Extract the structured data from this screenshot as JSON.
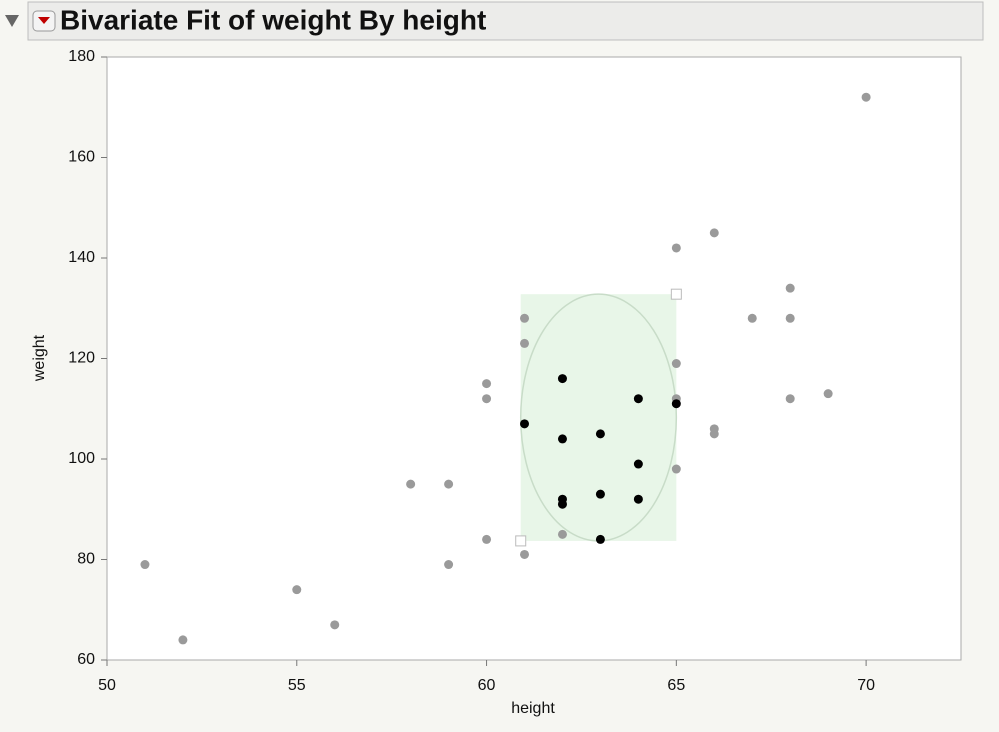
{
  "chart_data": {
    "type": "scatter",
    "title": "Bivariate Fit of weight By height",
    "x_label": "height",
    "y_label": "weight",
    "xlim": [
      50,
      72.5
    ],
    "ylim": [
      60,
      180
    ],
    "xticks": [
      50,
      55,
      60,
      65,
      70
    ],
    "yticks": [
      60,
      80,
      100,
      120,
      140,
      160,
      180
    ],
    "series": [
      {
        "color": "#9a9a9a",
        "x": [
          51,
          52,
          55,
          56,
          58,
          59,
          59,
          60,
          60,
          60,
          61,
          61,
          61,
          62,
          65,
          65,
          65,
          66,
          66,
          66,
          65,
          67,
          68,
          68,
          68,
          69,
          70
        ],
        "y": [
          79,
          64,
          74,
          67,
          95,
          95,
          79,
          115,
          112,
          84,
          128,
          123,
          81,
          85,
          119,
          112,
          98,
          145,
          106,
          105,
          142,
          128,
          134,
          128,
          112,
          113,
          172
        ]
      },
      {
        "color": "#000000",
        "x": [
          61,
          62,
          62,
          62,
          62,
          63,
          63,
          63,
          64,
          64,
          64,
          65
        ],
        "y": [
          107,
          116,
          104,
          92,
          91,
          105,
          93,
          84,
          112,
          99,
          92,
          111
        ]
      }
    ],
    "selection": {
      "x": [
        60.9,
        65
      ],
      "y": [
        83.7,
        132.8
      ],
      "color": "#e8f6e8"
    }
  }
}
